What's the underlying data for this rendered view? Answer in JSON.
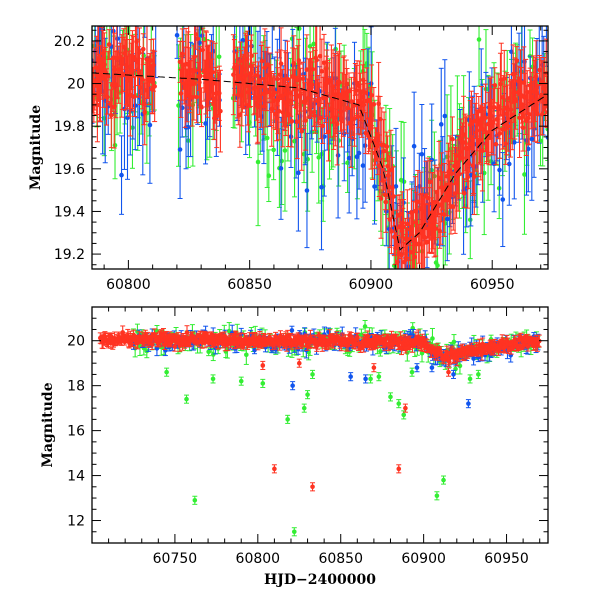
{
  "colors": {
    "g": "#33ee33",
    "b": "#1155ee",
    "r": "#ff3322"
  },
  "chart_data": [
    {
      "type": "scatter",
      "title": "",
      "xlabel": "",
      "ylabel": "Magnitude",
      "xlim": [
        60785,
        60973
      ],
      "ylim": [
        20.27,
        19.13
      ],
      "y_inverted": true,
      "xticks": [
        60800,
        60850,
        60900,
        60950
      ],
      "yticks": [
        19.2,
        19.4,
        19.6,
        19.8,
        20,
        20.2
      ],
      "ytick_labels": [
        "19.2",
        "19.4",
        "19.6",
        "19.8",
        "20",
        "20.2"
      ],
      "grid": false,
      "legend": "none",
      "model_curve": {
        "style": "dashed",
        "x": [
          60785,
          60830,
          60870,
          60895,
          60905,
          60912,
          60920,
          60935,
          60950,
          60973
        ],
        "y": [
          20.05,
          20.02,
          19.98,
          19.9,
          19.6,
          19.22,
          19.3,
          19.58,
          19.78,
          19.95
        ]
      },
      "series": [
        {
          "color": "g",
          "base": [
            [
              60785,
              20.0
            ],
            [
              60850,
              19.95
            ],
            [
              60900,
              19.78
            ],
            [
              60912,
              19.25
            ],
            [
              60925,
              19.5
            ],
            [
              60950,
              19.75
            ],
            [
              60973,
              19.95
            ]
          ],
          "scatter": 0.32,
          "err": 0.2,
          "gaps": [
            [
              60812,
              60820
            ],
            [
              60838,
              60843
            ]
          ],
          "step": 1.0
        },
        {
          "color": "b",
          "base": [
            [
              60785,
              20.05
            ],
            [
              60850,
              20.0
            ],
            [
              60900,
              19.8
            ],
            [
              60912,
              19.25
            ],
            [
              60925,
              19.5
            ],
            [
              60950,
              19.8
            ],
            [
              60973,
              19.95
            ]
          ],
          "scatter": 0.3,
          "err": 0.2,
          "gaps": [
            [
              60812,
              60820
            ],
            [
              60838,
              60843
            ]
          ],
          "step": 1.0
        },
        {
          "color": "r",
          "base": [
            [
              60785,
              20.03
            ],
            [
              60850,
              20.0
            ],
            [
              60900,
              19.9
            ],
            [
              60912,
              19.22
            ],
            [
              60925,
              19.4
            ],
            [
              60950,
              19.85
            ],
            [
              60970,
              19.97
            ]
          ],
          "scatter": 0.15,
          "err": 0.13,
          "gaps": [
            [
              60811,
              60821
            ],
            [
              60838,
              60843
            ]
          ],
          "step": 0.35
        }
      ]
    },
    {
      "type": "scatter",
      "title": "",
      "xlabel": "HJD−2400000",
      "ylabel": "Magnitude",
      "xlim": [
        60700,
        60975
      ],
      "ylim": [
        21.5,
        11.0
      ],
      "y_inverted": true,
      "xticks": [
        60750,
        60800,
        60850,
        60900,
        60950
      ],
      "yticks": [
        12,
        14,
        16,
        18,
        20
      ],
      "ytick_labels": [
        "12",
        "14",
        "16",
        "18",
        "20"
      ],
      "grid": false,
      "legend": "none",
      "series": [
        {
          "color": "g",
          "base": [
            [
              60725,
              20.0
            ],
            [
              60850,
              20.0
            ],
            [
              60900,
              19.9
            ],
            [
              60912,
              19.3
            ],
            [
              60925,
              19.5
            ],
            [
              60950,
              19.8
            ],
            [
              60970,
              19.95
            ]
          ],
          "scatter": 0.45,
          "err": 0.3,
          "start": 60725,
          "end": 60970,
          "step": 1.3,
          "outliers": [
            [
              60762,
              12.9
            ],
            [
              60822,
              11.5
            ],
            [
              60757,
              17.4
            ],
            [
              60818,
              16.5
            ],
            [
              60830,
              17.6
            ],
            [
              60828,
              17.0
            ],
            [
              60880,
              17.5
            ],
            [
              60885,
              17.2
            ],
            [
              60888,
              16.7
            ],
            [
              60908,
              13.1
            ],
            [
              60912,
              13.8
            ],
            [
              60745,
              18.6
            ],
            [
              60773,
              18.3
            ],
            [
              60790,
              18.2
            ],
            [
              60803,
              18.1
            ],
            [
              60833,
              18.5
            ],
            [
              60868,
              18.3
            ],
            [
              60873,
              18.4
            ],
            [
              60893,
              18.6
            ],
            [
              60928,
              18.3
            ],
            [
              60933,
              18.5
            ]
          ]
        },
        {
          "color": "b",
          "base": [
            [
              60725,
              20.0
            ],
            [
              60850,
              20.0
            ],
            [
              60900,
              19.9
            ],
            [
              60912,
              19.3
            ],
            [
              60925,
              19.5
            ],
            [
              60950,
              19.8
            ],
            [
              60970,
              19.95
            ]
          ],
          "scatter": 0.35,
          "err": 0.25,
          "start": 60725,
          "end": 60970,
          "step": 1.4,
          "outliers": [
            [
              60927,
              17.2
            ],
            [
              60821,
              18.0
            ],
            [
              60856,
              18.4
            ],
            [
              60865,
              18.3
            ],
            [
              60896,
              18.8
            ],
            [
              60905,
              18.8
            ],
            [
              60918,
              18.5
            ]
          ]
        },
        {
          "color": "r",
          "base": [
            [
              60705,
              20.05
            ],
            [
              60850,
              20.0
            ],
            [
              60900,
              19.9
            ],
            [
              60912,
              19.25
            ],
            [
              60925,
              19.5
            ],
            [
              60950,
              19.85
            ],
            [
              60970,
              19.97
            ]
          ],
          "scatter": 0.22,
          "err": 0.2,
          "start": 60705,
          "end": 60970,
          "step": 0.5,
          "outliers": [
            [
              60810,
              14.3
            ],
            [
              60833,
              13.5
            ],
            [
              60885,
              14.3
            ],
            [
              60889,
              17.0
            ],
            [
              60803,
              18.9
            ],
            [
              60825,
              19.0
            ],
            [
              60870,
              18.8
            ],
            [
              60915,
              18.6
            ]
          ]
        }
      ]
    }
  ]
}
